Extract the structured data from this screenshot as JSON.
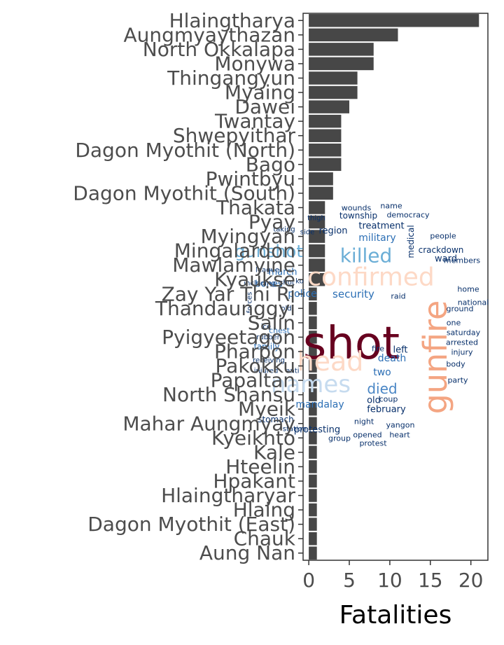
{
  "chart_data": {
    "type": "bar",
    "orientation": "horizontal",
    "categories": [
      "Hlaingtharya",
      "Aungmyaythazan",
      "North Okkalapa",
      "Monywa",
      "Thingangyun",
      "Myaing",
      "Dawei",
      "Twantay",
      "Shwepyithar",
      "Dagon Myothit (North)",
      "Bago",
      "Pwintbyu",
      "Dagon Myothit (South)",
      "Thakata",
      "Pyay",
      "Myingyan",
      "Mingalardon",
      "Mawlamyine",
      "Kyaukse",
      "Zay Yar Thi Ri",
      "Thandaunggyi",
      "Salin",
      "Pyigyeetagon",
      "Pharpon",
      "Pakokku",
      "Papaltan",
      "North Shansu",
      "Myeik",
      "Mahar Aungmyay",
      "Kyeikhto",
      "Kale",
      "Hteelin",
      "Hpakant",
      "Hlaingtharyar",
      "Hlaing",
      "Dagon Myothit (East)",
      "Chauk",
      "Aung Nan"
    ],
    "values": [
      21,
      11,
      8,
      8,
      6,
      6,
      5,
      4,
      4,
      4,
      4,
      3,
      3,
      2,
      2,
      2,
      2,
      2,
      2,
      1,
      1,
      1,
      1,
      1,
      1,
      1,
      1,
      1,
      1,
      1,
      1,
      1,
      1,
      1,
      1,
      1,
      1,
      1
    ],
    "xlabel": "Fatalities",
    "ylabel": "",
    "xlim": [
      -0.7,
      22.1
    ],
    "xticks": [
      0,
      5,
      10,
      15,
      20
    ],
    "bar_color": "#474747",
    "grid": false
  },
  "wordcloud": [
    {
      "text": "shot",
      "size": 64,
      "color": "#67001f",
      "rotate": 0
    },
    {
      "text": "gunfire",
      "size": 46,
      "color": "#f4a582",
      "rotate": -90
    },
    {
      "text": "confirmed",
      "size": 36,
      "color": "#fdd9c6",
      "rotate": 0
    },
    {
      "text": "head",
      "size": 38,
      "color": "#fdd9c6",
      "rotate": 0
    },
    {
      "text": "names",
      "size": 34,
      "color": "#c6dbef",
      "rotate": 0
    },
    {
      "text": "killed",
      "size": 28,
      "color": "#6baed6",
      "rotate": 0
    },
    {
      "text": "gunshot",
      "size": 24,
      "color": "#6baed6",
      "rotate": 0
    },
    {
      "text": "died",
      "size": 20,
      "color": "#4a86c5",
      "rotate": 0
    },
    {
      "text": "security",
      "size": 15,
      "color": "#2c6fb5",
      "rotate": 0
    },
    {
      "text": "military",
      "size": 14,
      "color": "#2c6fb5",
      "rotate": 0
    },
    {
      "text": "police",
      "size": 14,
      "color": "#2c6fb5",
      "rotate": 0
    },
    {
      "text": "mandalay",
      "size": 14,
      "color": "#2c6fb5",
      "rotate": 0
    },
    {
      "text": "death",
      "size": 14,
      "color": "#2c6fb5",
      "rotate": 0
    },
    {
      "text": "two",
      "size": 14,
      "color": "#2c6fb5",
      "rotate": 0
    },
    {
      "text": "march",
      "size": 13,
      "color": "#2c6fb5",
      "rotate": 0
    },
    {
      "text": "bones",
      "size": 13,
      "color": "#2c6fb5",
      "rotate": 0
    },
    {
      "text": "family",
      "size": 12,
      "color": "#2c6fb5",
      "rotate": 0
    },
    {
      "text": "treatment",
      "size": 13,
      "color": "#08306b",
      "rotate": 0
    },
    {
      "text": "region",
      "size": 13,
      "color": "#08306b",
      "rotate": 0
    },
    {
      "text": "ward",
      "size": 13,
      "color": "#08306b",
      "rotate": 0
    },
    {
      "text": "february",
      "size": 13,
      "color": "#08306b",
      "rotate": 0
    },
    {
      "text": "protesting",
      "size": 13,
      "color": "#08306b",
      "rotate": 0
    },
    {
      "text": "left",
      "size": 13,
      "color": "#08306b",
      "rotate": 0
    },
    {
      "text": "old",
      "size": 13,
      "color": "#08306b",
      "rotate": 0
    },
    {
      "text": "stomach",
      "size": 12,
      "color": "#08306b",
      "rotate": 0
    },
    {
      "text": "crackdown",
      "size": 12,
      "color": "#08306b",
      "rotate": 0
    },
    {
      "text": "township",
      "size": 12,
      "color": "#08306b",
      "rotate": 0
    },
    {
      "text": "medical",
      "size": 12,
      "color": "#08306b",
      "rotate": -90
    },
    {
      "text": "wounds",
      "size": 11,
      "color": "#08306b",
      "rotate": 0
    },
    {
      "text": "democracy",
      "size": 11,
      "color": "#08306b",
      "rotate": 0
    },
    {
      "text": "name",
      "size": 11,
      "color": "#08306b",
      "rotate": 0
    },
    {
      "text": "people",
      "size": 11,
      "color": "#08306b",
      "rotate": 0
    },
    {
      "text": "members",
      "size": 11,
      "color": "#08306b",
      "rotate": 0
    },
    {
      "text": "home",
      "size": 11,
      "color": "#08306b",
      "rotate": 0
    },
    {
      "text": "national",
      "size": 11,
      "color": "#08306b",
      "rotate": 0
    },
    {
      "text": "ground",
      "size": 11,
      "color": "#08306b",
      "rotate": 0
    },
    {
      "text": "one",
      "size": 11,
      "color": "#08306b",
      "rotate": 0
    },
    {
      "text": "saturday",
      "size": 11,
      "color": "#08306b",
      "rotate": 0
    },
    {
      "text": "arrested",
      "size": 11,
      "color": "#08306b",
      "rotate": 0
    },
    {
      "text": "injury",
      "size": 11,
      "color": "#08306b",
      "rotate": 0
    },
    {
      "text": "body",
      "size": 11,
      "color": "#08306b",
      "rotate": 0
    },
    {
      "text": "party",
      "size": 11,
      "color": "#08306b",
      "rotate": 0
    },
    {
      "text": "raid",
      "size": 11,
      "color": "#08306b",
      "rotate": 0
    },
    {
      "text": "fire",
      "size": 11,
      "color": "#08306b",
      "rotate": 0
    },
    {
      "text": "coup",
      "size": 11,
      "color": "#08306b",
      "rotate": 0
    },
    {
      "text": "night",
      "size": 11,
      "color": "#08306b",
      "rotate": 0
    },
    {
      "text": "yangon",
      "size": 11,
      "color": "#08306b",
      "rotate": 0
    },
    {
      "text": "opened",
      "size": 11,
      "color": "#08306b",
      "rotate": 0
    },
    {
      "text": "heart",
      "size": 11,
      "color": "#08306b",
      "rotate": 0
    },
    {
      "text": "group",
      "size": 11,
      "color": "#08306b",
      "rotate": 0
    },
    {
      "text": "protest",
      "size": 11,
      "color": "#08306b",
      "rotate": 0
    },
    {
      "text": "station",
      "size": 10,
      "color": "#08306b",
      "rotate": 0
    },
    {
      "text": "shot",
      "size": 10,
      "color": "#08306b",
      "rotate": 0
    },
    {
      "text": "thigh",
      "size": 10,
      "color": "#08306b",
      "rotate": 0
    },
    {
      "text": "taking",
      "size": 10,
      "color": "#08306b",
      "rotate": 0
    },
    {
      "text": "side",
      "size": 10,
      "color": "#08306b",
      "rotate": 0
    },
    {
      "text": "league",
      "size": 10,
      "color": "#08306b",
      "rotate": 0
    },
    {
      "text": "including",
      "size": 10,
      "color": "#08306b",
      "rotate": 0
    },
    {
      "text": "ko",
      "size": 10,
      "color": "#08306b",
      "rotate": 0
    },
    {
      "text": "chest",
      "size": 11,
      "color": "#2c6fb5",
      "rotate": 0
    },
    {
      "text": "rubber",
      "size": 10,
      "color": "#08306b",
      "rotate": 0
    },
    {
      "text": "receiving",
      "size": 10,
      "color": "#08306b",
      "rotate": 0
    },
    {
      "text": "injured",
      "size": 10,
      "color": "#08306b",
      "rotate": 0
    },
    {
      "text": "anti",
      "size": 10,
      "color": "#08306b",
      "rotate": 0
    },
    {
      "text": "old",
      "size": 10,
      "color": "#08306b",
      "rotate": 0
    },
    {
      "text": "forces",
      "size": 10,
      "color": "#08306b",
      "rotate": -90
    },
    {
      "text": "ice",
      "size": 10,
      "color": "#08306b",
      "rotate": 0
    }
  ]
}
